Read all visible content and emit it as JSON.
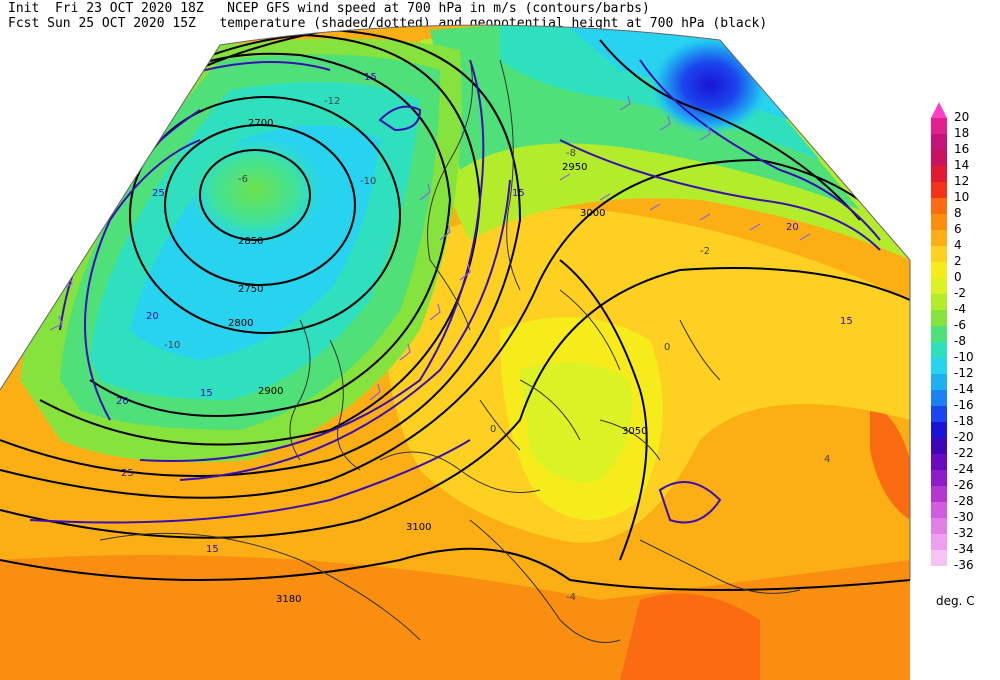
{
  "header": {
    "init_label": "Init",
    "init_time": "Fri 23 OCT 2020 18Z",
    "fcst_label": "Fcst",
    "fcst_time": "Sun 25 OCT 2020 15Z",
    "title_line1": "NCEP GFS wind speed at 700 hPa in m/s (contours/barbs)",
    "title_line2": "temperature (shaded/dotted) and geopotential height at 700 hPa (black)"
  },
  "map": {
    "region": "Europe / North Atlantic",
    "pressure_level": "700 hPa",
    "height_contour_color": "#000000",
    "wind_contour_color": "#3a0fb0",
    "height_labels": [
      "2700",
      "2750",
      "2800",
      "2850",
      "2900",
      "2950",
      "3000",
      "3050",
      "3100",
      "3180"
    ],
    "wind_labels": [
      "15",
      "20",
      "25",
      "15",
      "20",
      "25",
      "15",
      "20",
      "15",
      "15"
    ],
    "temperature_labels": [
      "-6",
      "-10",
      "-10",
      "-12",
      "-8",
      "-2",
      "0",
      "0",
      "-4",
      "4"
    ]
  },
  "legend": {
    "unit": "deg. C",
    "levels": [
      {
        "value": "20",
        "color": "#ff3fc6"
      },
      {
        "value": "18",
        "color": "#e2208f"
      },
      {
        "value": "16",
        "color": "#c21577"
      },
      {
        "value": "14",
        "color": "#c8125e"
      },
      {
        "value": "12",
        "color": "#e4182f"
      },
      {
        "value": "10",
        "color": "#f4321a"
      },
      {
        "value": "8",
        "color": "#fb6c12"
      },
      {
        "value": "6",
        "color": "#f98e10"
      },
      {
        "value": "4",
        "color": "#fcae15"
      },
      {
        "value": "2",
        "color": "#fdd021"
      },
      {
        "value": "0",
        "color": "#f6ec1c"
      },
      {
        "value": "-2",
        "color": "#dcf224"
      },
      {
        "value": "-4",
        "color": "#b2ec2a"
      },
      {
        "value": "-6",
        "color": "#86e23c"
      },
      {
        "value": "-8",
        "color": "#4fe07a"
      },
      {
        "value": "-10",
        "color": "#2fe0bf"
      },
      {
        "value": "-12",
        "color": "#28d3ef"
      },
      {
        "value": "-14",
        "color": "#1fb0f3"
      },
      {
        "value": "-16",
        "color": "#1c82f3"
      },
      {
        "value": "-18",
        "color": "#1b45ee"
      },
      {
        "value": "-20",
        "color": "#1a14d6"
      },
      {
        "value": "-22",
        "color": "#3d07b8"
      },
      {
        "value": "-24",
        "color": "#6a0ac0"
      },
      {
        "value": "-26",
        "color": "#8e1cc6"
      },
      {
        "value": "-28",
        "color": "#b437d2"
      },
      {
        "value": "-30",
        "color": "#d25cdf"
      },
      {
        "value": "-32",
        "color": "#e27ee8"
      },
      {
        "value": "-34",
        "color": "#ee9ff0"
      },
      {
        "value": "-36",
        "color": "#f6c3f5"
      }
    ]
  }
}
